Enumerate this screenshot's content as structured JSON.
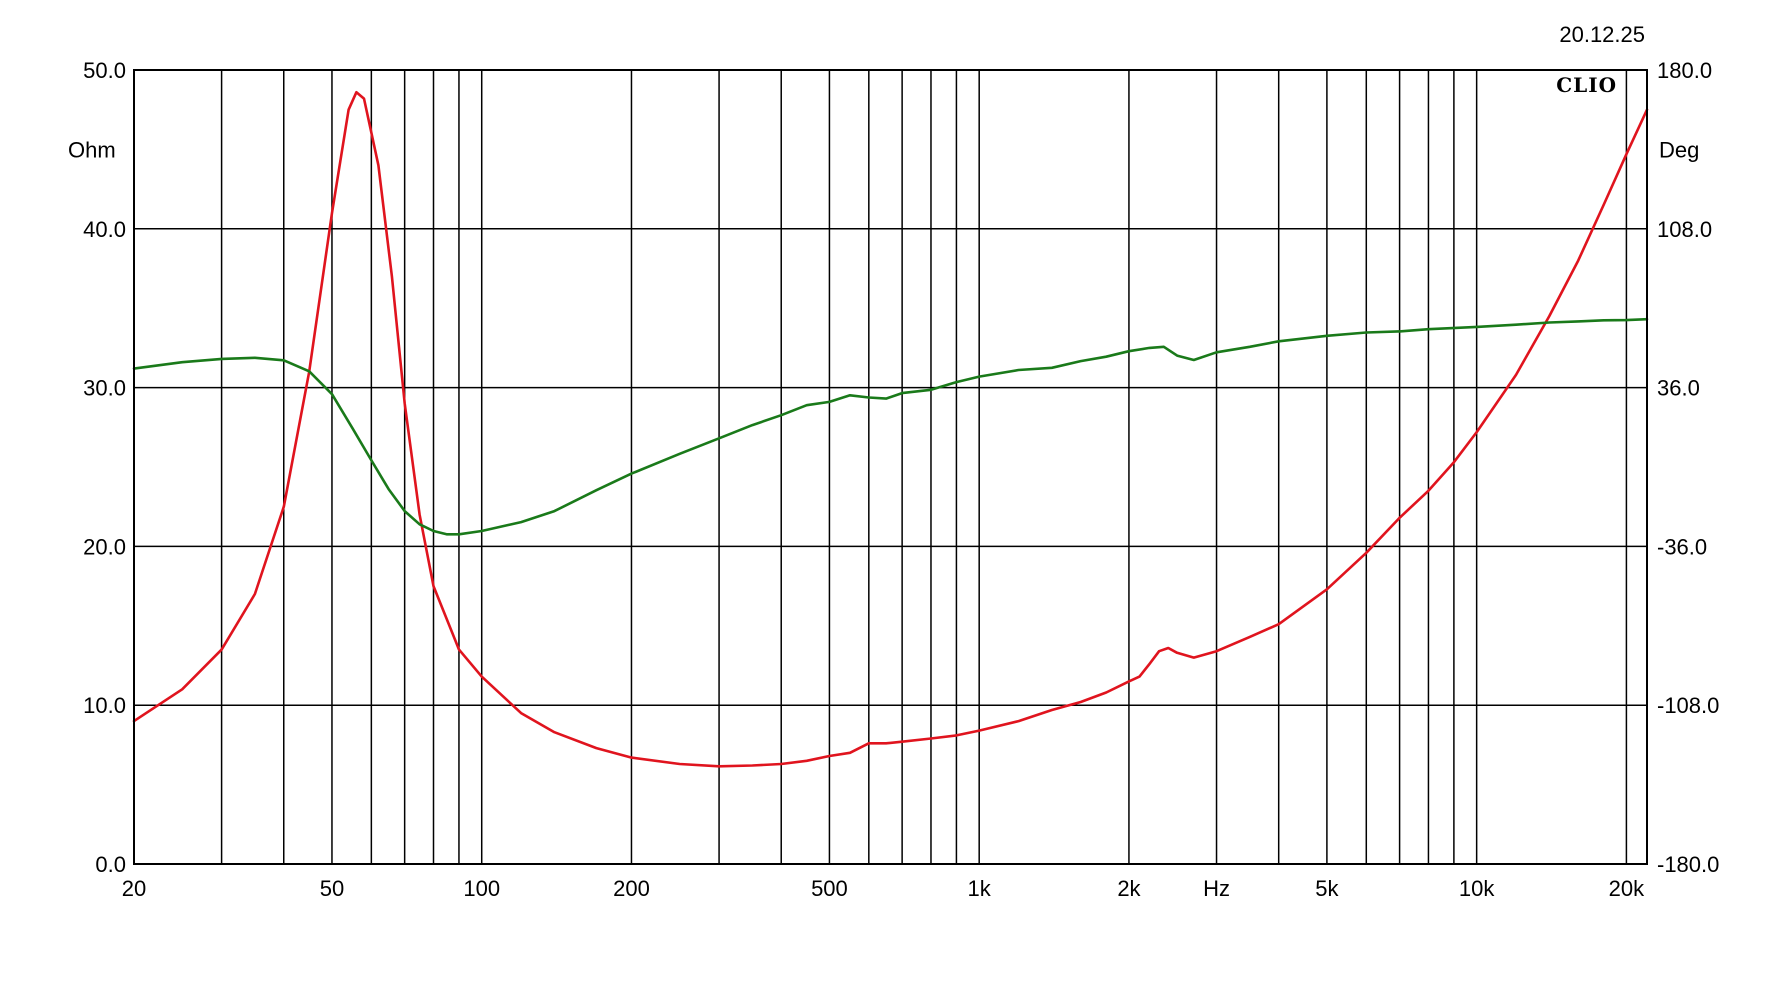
{
  "header": {
    "date": "20.12.25",
    "brand": "CLIO"
  },
  "chart_data": {
    "type": "line",
    "title": "",
    "xlabel": "Hz",
    "ylabel": "Ohm",
    "y2label": "Deg",
    "xscale": "log",
    "xlim": [
      20,
      22000
    ],
    "ylim": [
      0,
      50
    ],
    "y2lim": [
      -180,
      180
    ],
    "grid": true,
    "x_ticks": [
      {
        "value": 20,
        "label": "20"
      },
      {
        "value": 50,
        "label": "50"
      },
      {
        "value": 100,
        "label": "100"
      },
      {
        "value": 200,
        "label": "200"
      },
      {
        "value": 500,
        "label": "500"
      },
      {
        "value": 1000,
        "label": "1k"
      },
      {
        "value": 2000,
        "label": "2k"
      },
      {
        "value": 3000,
        "label": "Hz"
      },
      {
        "value": 5000,
        "label": "5k"
      },
      {
        "value": 10000,
        "label": "10k"
      },
      {
        "value": 20000,
        "label": "20k"
      }
    ],
    "y_ticks": [
      {
        "value": 0,
        "label": "0.0"
      },
      {
        "value": 10,
        "label": "10.0"
      },
      {
        "value": 20,
        "label": "20.0"
      },
      {
        "value": 30,
        "label": "30.0"
      },
      {
        "value": 40,
        "label": "40.0"
      },
      {
        "value": 50,
        "label": "50.0"
      }
    ],
    "y2_ticks": [
      {
        "value": -180,
        "label": "-180.0"
      },
      {
        "value": -108,
        "label": "-108.0"
      },
      {
        "value": -36,
        "label": "-36.0"
      },
      {
        "value": 36,
        "label": "36.0"
      },
      {
        "value": 108,
        "label": "108.0"
      },
      {
        "value": 180,
        "label": "180.0"
      }
    ],
    "series": [
      {
        "color": "#e0141e",
        "axis": "left",
        "points": [
          [
            20,
            9.0
          ],
          [
            25,
            11.0
          ],
          [
            30,
            13.5
          ],
          [
            35,
            17.0
          ],
          [
            40,
            22.5
          ],
          [
            45,
            31.0
          ],
          [
            50,
            41.0
          ],
          [
            54,
            47.5
          ],
          [
            56,
            48.6
          ],
          [
            58,
            48.2
          ],
          [
            62,
            44.0
          ],
          [
            66,
            37.0
          ],
          [
            70,
            29.0
          ],
          [
            75,
            22.0
          ],
          [
            80,
            17.5
          ],
          [
            90,
            13.5
          ],
          [
            100,
            11.8
          ],
          [
            120,
            9.5
          ],
          [
            140,
            8.3
          ],
          [
            170,
            7.3
          ],
          [
            200,
            6.7
          ],
          [
            250,
            6.3
          ],
          [
            300,
            6.15
          ],
          [
            350,
            6.2
          ],
          [
            400,
            6.3
          ],
          [
            450,
            6.5
          ],
          [
            500,
            6.8
          ],
          [
            550,
            7.0
          ],
          [
            600,
            7.6
          ],
          [
            650,
            7.6
          ],
          [
            700,
            7.7
          ],
          [
            800,
            7.9
          ],
          [
            900,
            8.1
          ],
          [
            1000,
            8.4
          ],
          [
            1200,
            9.0
          ],
          [
            1400,
            9.7
          ],
          [
            1600,
            10.2
          ],
          [
            1800,
            10.8
          ],
          [
            2000,
            11.5
          ],
          [
            2100,
            11.8
          ],
          [
            2200,
            12.6
          ],
          [
            2300,
            13.4
          ],
          [
            2400,
            13.6
          ],
          [
            2500,
            13.3
          ],
          [
            2700,
            13.0
          ],
          [
            3000,
            13.4
          ],
          [
            3500,
            14.3
          ],
          [
            4000,
            15.1
          ],
          [
            5000,
            17.3
          ],
          [
            6000,
            19.6
          ],
          [
            7000,
            21.8
          ],
          [
            8000,
            23.5
          ],
          [
            9000,
            25.3
          ],
          [
            10000,
            27.2
          ],
          [
            12000,
            30.8
          ],
          [
            14000,
            34.5
          ],
          [
            16000,
            38.0
          ],
          [
            18000,
            41.5
          ],
          [
            20000,
            44.7
          ],
          [
            22000,
            47.5
          ]
        ]
      },
      {
        "color": "#1a7a1a",
        "axis": "right",
        "points": [
          [
            20,
            44.6
          ],
          [
            25,
            47.5
          ],
          [
            30,
            49.0
          ],
          [
            35,
            49.5
          ],
          [
            40,
            48.4
          ],
          [
            45,
            43.4
          ],
          [
            50,
            33.0
          ],
          [
            55,
            17.5
          ],
          [
            60,
            3.0
          ],
          [
            65,
            -10.0
          ],
          [
            70,
            -20.0
          ],
          [
            75,
            -26.0
          ],
          [
            80,
            -29.0
          ],
          [
            85,
            -30.5
          ],
          [
            90,
            -30.5
          ],
          [
            100,
            -29.0
          ],
          [
            120,
            -25.0
          ],
          [
            140,
            -20.0
          ],
          [
            170,
            -10.5
          ],
          [
            200,
            -3.0
          ],
          [
            250,
            6.0
          ],
          [
            300,
            13.0
          ],
          [
            350,
            19.0
          ],
          [
            400,
            23.5
          ],
          [
            450,
            28.0
          ],
          [
            500,
            29.5
          ],
          [
            550,
            32.5
          ],
          [
            600,
            31.5
          ],
          [
            650,
            31.0
          ],
          [
            700,
            33.5
          ],
          [
            800,
            35.0
          ],
          [
            900,
            38.5
          ],
          [
            1000,
            41.0
          ],
          [
            1200,
            44.0
          ],
          [
            1400,
            45.0
          ],
          [
            1600,
            48.0
          ],
          [
            1800,
            50.0
          ],
          [
            2000,
            52.5
          ],
          [
            2200,
            54.0
          ],
          [
            2350,
            54.5
          ],
          [
            2500,
            50.5
          ],
          [
            2700,
            48.5
          ],
          [
            3000,
            52.0
          ],
          [
            3500,
            54.5
          ],
          [
            4000,
            57.0
          ],
          [
            5000,
            59.5
          ],
          [
            6000,
            61.0
          ],
          [
            7000,
            61.5
          ],
          [
            8000,
            62.5
          ],
          [
            10000,
            63.5
          ],
          [
            12000,
            64.5
          ],
          [
            14000,
            65.5
          ],
          [
            16000,
            66.0
          ],
          [
            18000,
            66.5
          ],
          [
            20000,
            66.6
          ],
          [
            22000,
            67.0
          ]
        ]
      }
    ]
  }
}
